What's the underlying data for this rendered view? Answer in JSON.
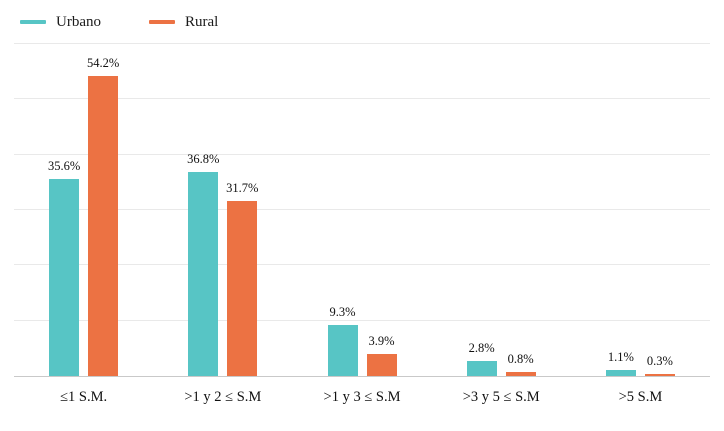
{
  "legend": {
    "items": [
      {
        "label": "Urbano",
        "color": "#57c5c5"
      },
      {
        "label": "Rural",
        "color": "#ec7243"
      }
    ]
  },
  "chart_data": {
    "type": "bar",
    "title": "",
    "xlabel": "",
    "ylabel": "",
    "categories": [
      "≤1 S.M.",
      ">1 y 2 ≤ S.M",
      ">1 y 3 ≤ S.M",
      ">3 y 5 ≤ S.M",
      ">5 S.M"
    ],
    "series": [
      {
        "name": "Urbano",
        "color": "#57c5c5",
        "values": [
          35.6,
          36.8,
          9.3,
          2.8,
          1.1
        ]
      },
      {
        "name": "Rural",
        "color": "#ec7243",
        "values": [
          54.2,
          31.7,
          3.9,
          0.8,
          0.3
        ]
      }
    ],
    "value_labels": [
      [
        "35.6%",
        "36.8%",
        "9.3%",
        "2.8%",
        "1.1%"
      ],
      [
        "54.2%",
        "31.7%",
        "3.9%",
        "0.8%",
        "0.3%"
      ]
    ],
    "value_suffix": "%",
    "ylim": [
      0,
      60
    ],
    "gridline_step": 10,
    "grid": true,
    "legend_position": "top-left",
    "colors": {
      "gridline": "#e9e9e9",
      "axis": "#c9c9c9",
      "text": "#111111",
      "background": "#ffffff"
    }
  }
}
